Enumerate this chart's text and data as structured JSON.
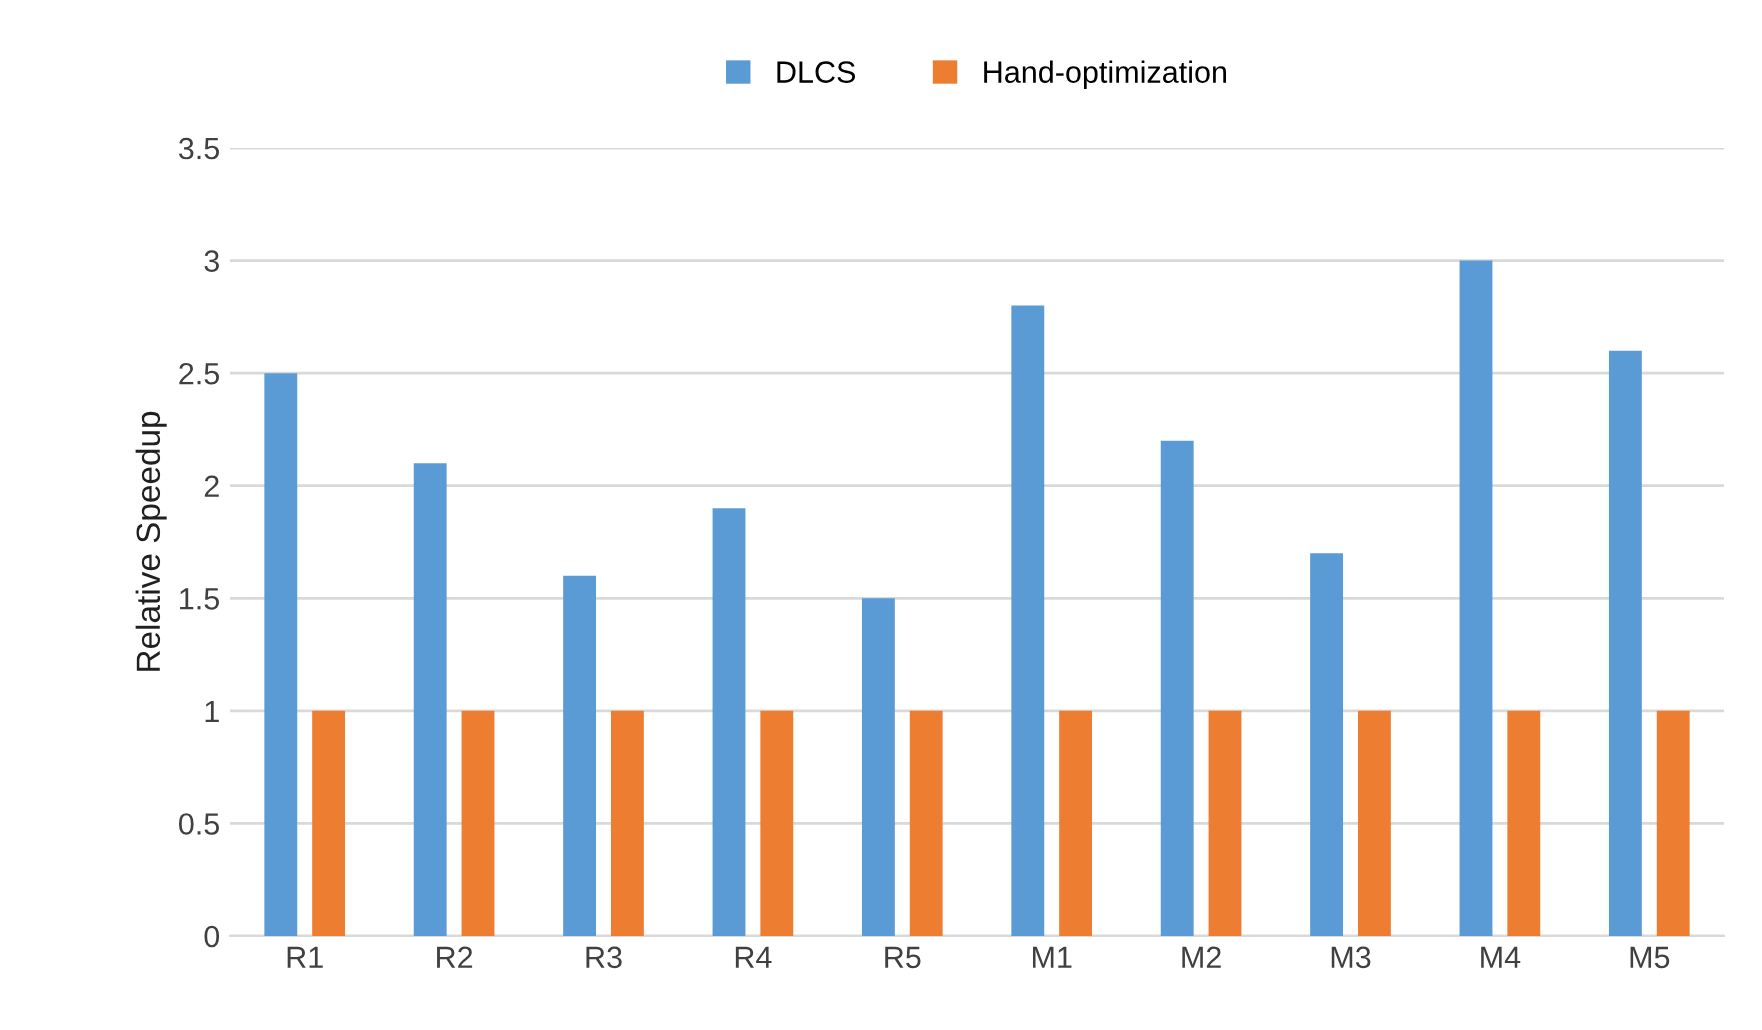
{
  "chart_data": {
    "type": "bar",
    "ylabel": "Relative Speedup",
    "categories": [
      "R1",
      "R2",
      "R3",
      "R4",
      "R5",
      "M1",
      "M2",
      "M3",
      "M4",
      "M5"
    ],
    "series": [
      {
        "name": "DLCS",
        "color": "#5b9bd5",
        "values": [
          2.5,
          2.1,
          1.6,
          1.9,
          1.5,
          2.8,
          2.2,
          1.7,
          3.0,
          2.6
        ]
      },
      {
        "name": "Hand-optimization",
        "color": "#ed7d31",
        "values": [
          1,
          1,
          1,
          1,
          1,
          1,
          1,
          1,
          1,
          1
        ]
      }
    ],
    "ylim": [
      0,
      3.5
    ],
    "yticks": [
      0,
      0.5,
      1,
      1.5,
      2,
      2.5,
      3,
      3.5
    ],
    "grid": "y",
    "legend": "top"
  }
}
